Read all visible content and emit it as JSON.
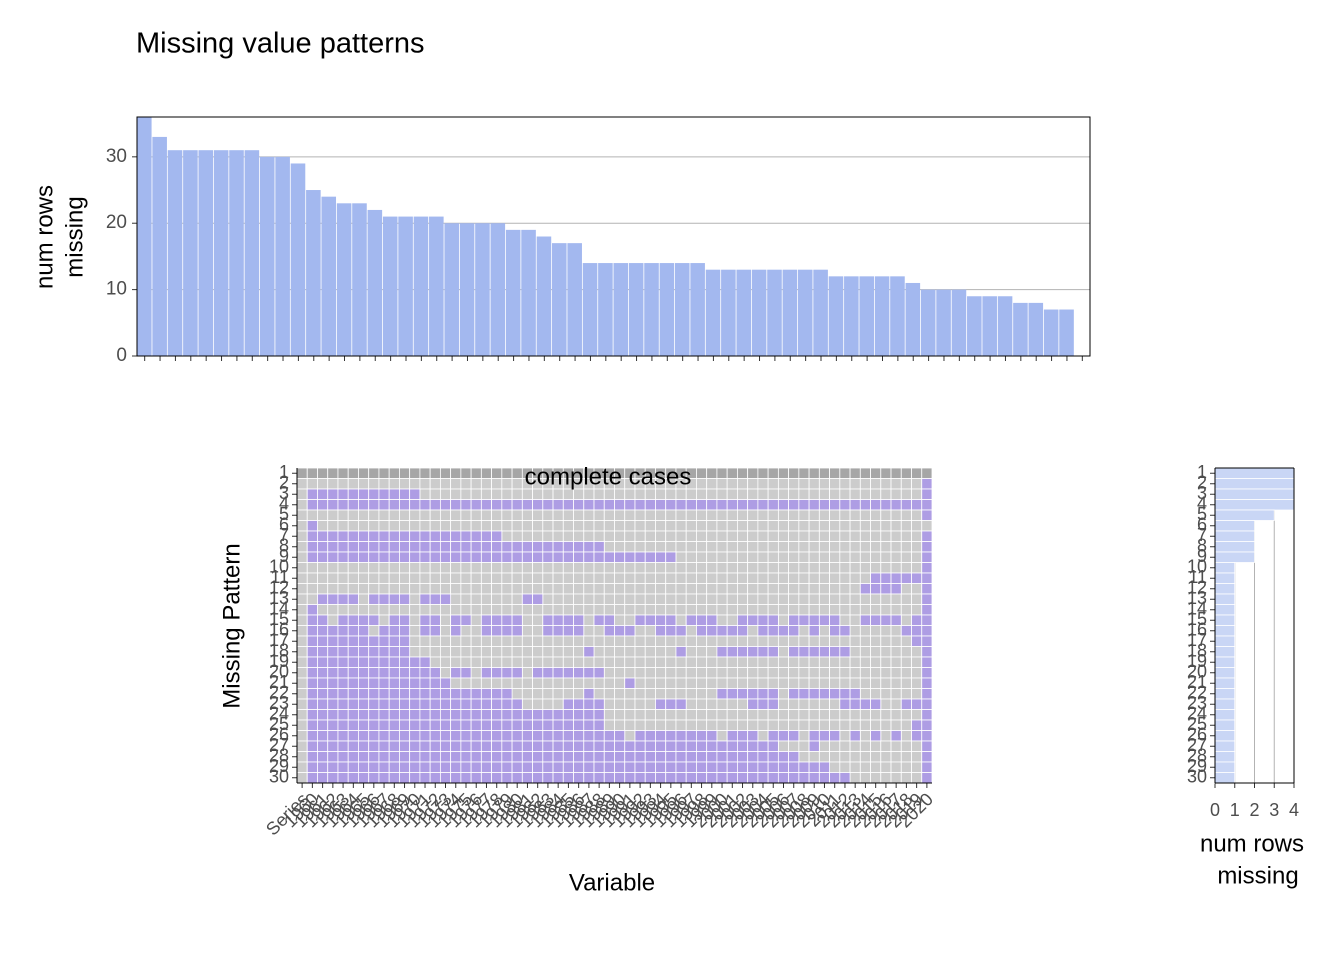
{
  "title": "Missing value patterns",
  "top_chart": {
    "type": "bar",
    "ylabel_lines": [
      "num rows",
      "missing"
    ],
    "values": [
      36,
      33,
      31,
      31,
      31,
      31,
      31,
      31,
      30,
      30,
      29,
      25,
      24,
      23,
      23,
      22,
      21,
      21,
      21,
      21,
      20,
      20,
      20,
      20,
      19,
      19,
      18,
      17,
      17,
      14,
      14,
      14,
      14,
      14,
      14,
      14,
      14,
      13,
      13,
      13,
      13,
      13,
      13,
      13,
      13,
      12,
      12,
      12,
      12,
      12,
      11,
      10,
      10,
      10,
      9,
      9,
      9,
      8,
      8,
      7,
      7,
      0
    ],
    "color": "#a3b8ef",
    "ylim": [
      0,
      36
    ],
    "yticks": [
      0,
      10,
      20,
      30
    ],
    "grid": true
  },
  "heatmap": {
    "type": "heatmap",
    "annotation": "complete cases",
    "xlabel": "Variable",
    "ylabel": "Missing Pattern",
    "missing_color": "#ae9de4",
    "present_color": "#cccccc",
    "complete_color": "#a6a6a6",
    "variables": [
      "Series",
      "1960",
      "1961",
      "1962",
      "1963",
      "1964",
      "1965",
      "1966",
      "1967",
      "1968",
      "1969",
      "1970",
      "1971",
      "1972",
      "1973",
      "1974",
      "1975",
      "1976",
      "1977",
      "1978",
      "1979",
      "1980",
      "1981",
      "1982",
      "1983",
      "1984",
      "1985",
      "1986",
      "1987",
      "1988",
      "1989",
      "1990",
      "1991",
      "1992",
      "1993",
      "1994",
      "1995",
      "1996",
      "1997",
      "1998",
      "1999",
      "2000",
      "2001",
      "2002",
      "2003",
      "2004",
      "2005",
      "2006",
      "2007",
      "2008",
      "2009",
      "2010",
      "2011",
      "2012",
      "2013",
      "2014",
      "2015",
      "2016",
      "2017",
      "2018",
      "2019",
      "2020"
    ],
    "pattern_labels": [
      1,
      2,
      3,
      4,
      5,
      6,
      7,
      8,
      9,
      10,
      11,
      12,
      13,
      14,
      15,
      16,
      17,
      18,
      19,
      20,
      21,
      22,
      23,
      24,
      25,
      26,
      27,
      28,
      29,
      30
    ],
    "patterns": [
      [],
      [
        [
          61,
          61
        ]
      ],
      [
        [
          1,
          11
        ],
        [
          61,
          61
        ]
      ],
      [
        [
          1,
          61
        ]
      ],
      [
        [
          61,
          61
        ]
      ],
      [
        [
          1,
          1
        ]
      ],
      [
        [
          1,
          19
        ],
        [
          61,
          61
        ]
      ],
      [
        [
          1,
          29
        ],
        [
          61,
          61
        ]
      ],
      [
        [
          1,
          36
        ],
        [
          61,
          61
        ]
      ],
      [
        [
          61,
          61
        ]
      ],
      [
        [
          56,
          61
        ]
      ],
      [
        [
          55,
          58
        ],
        [
          61,
          61
        ]
      ],
      [
        [
          2,
          5
        ],
        [
          7,
          10
        ],
        [
          12,
          14
        ],
        [
          22,
          23
        ],
        [
          61,
          61
        ]
      ],
      [
        [
          1,
          1
        ],
        [
          61,
          61
        ]
      ],
      [
        [
          1,
          2
        ],
        [
          4,
          7
        ],
        [
          9,
          10
        ],
        [
          12,
          13
        ],
        [
          15,
          16
        ],
        [
          18,
          21
        ],
        [
          24,
          27
        ],
        [
          29,
          30
        ],
        [
          33,
          36
        ],
        [
          38,
          40
        ],
        [
          43,
          46
        ],
        [
          48,
          52
        ],
        [
          55,
          58
        ],
        [
          60,
          61
        ]
      ],
      [
        [
          1,
          6
        ],
        [
          8,
          10
        ],
        [
          12,
          13
        ],
        [
          15,
          15
        ],
        [
          18,
          21
        ],
        [
          24,
          27
        ],
        [
          30,
          32
        ],
        [
          35,
          37
        ],
        [
          39,
          43
        ],
        [
          45,
          48
        ],
        [
          50,
          50
        ],
        [
          52,
          53
        ],
        [
          59,
          61
        ]
      ],
      [
        [
          1,
          10
        ],
        [
          60,
          61
        ]
      ],
      [
        [
          1,
          10
        ],
        [
          28,
          28
        ],
        [
          37,
          37
        ],
        [
          41,
          46
        ],
        [
          48,
          53
        ],
        [
          61,
          61
        ]
      ],
      [
        [
          1,
          12
        ],
        [
          61,
          61
        ]
      ],
      [
        [
          1,
          13
        ],
        [
          15,
          16
        ],
        [
          18,
          21
        ],
        [
          23,
          29
        ],
        [
          61,
          61
        ]
      ],
      [
        [
          1,
          14
        ],
        [
          32,
          32
        ],
        [
          61,
          61
        ]
      ],
      [
        [
          1,
          20
        ],
        [
          28,
          28
        ],
        [
          41,
          46
        ],
        [
          48,
          54
        ],
        [
          61,
          61
        ]
      ],
      [
        [
          1,
          21
        ],
        [
          26,
          29
        ],
        [
          35,
          37
        ],
        [
          44,
          46
        ],
        [
          53,
          56
        ],
        [
          59,
          61
        ]
      ],
      [
        [
          1,
          29
        ],
        [
          61,
          61
        ]
      ],
      [
        [
          1,
          29
        ],
        [
          60,
          61
        ]
      ],
      [
        [
          1,
          31
        ],
        [
          33,
          40
        ],
        [
          42,
          44
        ],
        [
          46,
          48
        ],
        [
          50,
          52
        ],
        [
          54,
          54
        ],
        [
          56,
          56
        ],
        [
          58,
          58
        ],
        [
          60,
          61
        ]
      ],
      [
        [
          1,
          46
        ],
        [
          50,
          50
        ],
        [
          61,
          61
        ]
      ],
      [
        [
          1,
          48
        ],
        [
          61,
          61
        ]
      ],
      [
        [
          1,
          51
        ],
        [
          61,
          61
        ]
      ],
      [
        [
          1,
          53
        ],
        [
          61,
          61
        ]
      ]
    ]
  },
  "side_chart": {
    "type": "hbar",
    "xlabel_lines": [
      "num rows",
      "missing"
    ],
    "color": "#c9d6f5",
    "values": [
      4,
      4,
      4,
      4,
      3,
      2,
      2,
      2,
      2,
      1,
      1,
      1,
      1,
      1,
      1,
      1,
      1,
      1,
      1,
      1,
      1,
      1,
      1,
      1,
      1,
      1,
      1,
      1,
      1,
      1
    ],
    "xlim": [
      0,
      4
    ],
    "xticks": [
      0,
      1,
      2,
      3,
      4
    ],
    "grid": true
  }
}
